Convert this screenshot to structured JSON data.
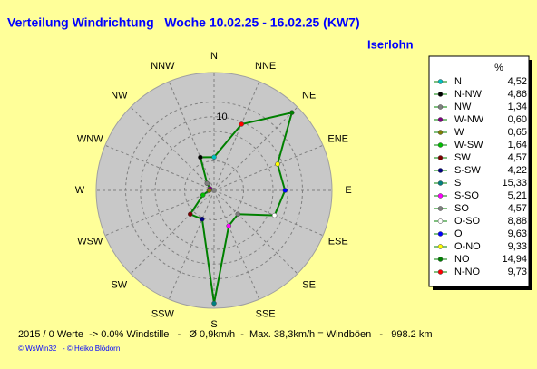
{
  "chart_data": {
    "type": "radar",
    "title": "Verteilung Windrichtung   Woche 10.02.25 - 16.02.25 (KW7)",
    "location": "Iserlohn",
    "axis_labels": [
      "N",
      "NNE",
      "NE",
      "ENE",
      "E",
      "ESE",
      "SE",
      "SSE",
      "S",
      "SSW",
      "SW",
      "WSW",
      "W",
      "WNW",
      "NW",
      "NNW"
    ],
    "legend_unit": "%",
    "categories": [
      "N",
      "N-NW",
      "NW",
      "W-NW",
      "W",
      "W-SW",
      "SW",
      "S-SW",
      "S",
      "S-SO",
      "SO",
      "O-SO",
      "O",
      "O-NO",
      "NO",
      "N-NO"
    ],
    "values": [
      4.52,
      4.86,
      1.34,
      0.6,
      0.65,
      1.64,
      4.57,
      4.22,
      15.33,
      5.21,
      4.57,
      8.88,
      9.63,
      9.33,
      14.94,
      9.73
    ],
    "value_labels": [
      "4,52",
      "4,86",
      "1,34",
      "0,60",
      "0,65",
      "1,64",
      "4,57",
      "4,22",
      "15,33",
      "5,21",
      "4,57",
      "8,88",
      "9,63",
      "9,33",
      "14,94",
      "9,73"
    ],
    "colors": [
      "#00c0c0",
      "#000000",
      "#808080",
      "#800080",
      "#808000",
      "#00c000",
      "#800000",
      "#000080",
      "#008080",
      "#ff00ff",
      "#808080",
      "#ffffff",
      "#0000ff",
      "#ffff00",
      "#008000",
      "#ff0000"
    ],
    "line_color": "#008000",
    "rlim": [
      0,
      16
    ],
    "rticks": [
      10
    ],
    "footer": "2015 / 0 Werte  -> 0.0% Windstille   -   Ø 0,9km/h  -  Max. 38,3km/h = Windböen   -   998.2 km",
    "credit": "© WsWin32   - © Heiko Blödorn"
  }
}
